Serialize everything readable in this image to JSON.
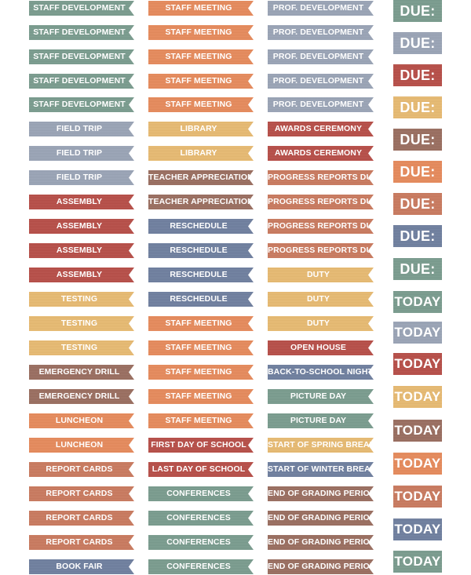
{
  "colors": {
    "sage": "#7a9c8e",
    "orange": "#e68a5c",
    "gray_blue": "#9aa4b6",
    "blue": "#6f7f9f",
    "gold": "#e7ba72",
    "brown": "#9a6e60",
    "red": "#b74e48",
    "rust": "#c97a5f",
    "slate": "#8a9dab"
  },
  "stickers": {
    "column1": [
      {
        "label": "STAFF DEVELOPMENT",
        "color": "sage"
      },
      {
        "label": "STAFF DEVELOPMENT",
        "color": "sage"
      },
      {
        "label": "STAFF DEVELOPMENT",
        "color": "sage"
      },
      {
        "label": "STAFF DEVELOPMENT",
        "color": "sage"
      },
      {
        "label": "STAFF DEVELOPMENT",
        "color": "sage"
      },
      {
        "label": "FIELD TRIP",
        "color": "gray_blue"
      },
      {
        "label": "FIELD TRIP",
        "color": "gray_blue"
      },
      {
        "label": "FIELD TRIP",
        "color": "gray_blue"
      },
      {
        "label": "ASSEMBLY",
        "color": "red"
      },
      {
        "label": "ASSEMBLY",
        "color": "red"
      },
      {
        "label": "ASSEMBLY",
        "color": "red"
      },
      {
        "label": "ASSEMBLY",
        "color": "red"
      },
      {
        "label": "TESTING",
        "color": "gold"
      },
      {
        "label": "TESTING",
        "color": "gold"
      },
      {
        "label": "TESTING",
        "color": "gold"
      },
      {
        "label": "EMERGENCY DRILL",
        "color": "brown"
      },
      {
        "label": "EMERGENCY DRILL",
        "color": "brown"
      },
      {
        "label": "LUNCHEON",
        "color": "orange"
      },
      {
        "label": "LUNCHEON",
        "color": "orange"
      },
      {
        "label": "REPORT CARDS",
        "color": "rust"
      },
      {
        "label": "REPORT CARDS",
        "color": "rust"
      },
      {
        "label": "REPORT CARDS",
        "color": "rust"
      },
      {
        "label": "REPORT CARDS",
        "color": "rust"
      },
      {
        "label": "BOOK FAIR",
        "color": "blue"
      }
    ],
    "column2": [
      {
        "label": "STAFF MEETING",
        "color": "orange"
      },
      {
        "label": "STAFF MEETING",
        "color": "orange"
      },
      {
        "label": "STAFF MEETING",
        "color": "orange"
      },
      {
        "label": "STAFF MEETING",
        "color": "orange"
      },
      {
        "label": "STAFF MEETING",
        "color": "orange"
      },
      {
        "label": "LIBRARY",
        "color": "gold"
      },
      {
        "label": "LIBRARY",
        "color": "gold"
      },
      {
        "label": "TEACHER APPRECIATION",
        "color": "brown"
      },
      {
        "label": "TEACHER APPRECIATION",
        "color": "brown"
      },
      {
        "label": "RESCHEDULE",
        "color": "blue"
      },
      {
        "label": "RESCHEDULE",
        "color": "blue"
      },
      {
        "label": "RESCHEDULE",
        "color": "blue"
      },
      {
        "label": "RESCHEDULE",
        "color": "blue"
      },
      {
        "label": "STAFF MEETING",
        "color": "orange"
      },
      {
        "label": "STAFF MEETING",
        "color": "orange"
      },
      {
        "label": "STAFF MEETING",
        "color": "orange"
      },
      {
        "label": "STAFF MEETING",
        "color": "orange"
      },
      {
        "label": "STAFF MEETING",
        "color": "orange"
      },
      {
        "label": "FIRST DAY OF SCHOOL",
        "color": "red"
      },
      {
        "label": "LAST DAY OF SCHOOL",
        "color": "red"
      },
      {
        "label": "CONFERENCES",
        "color": "sage"
      },
      {
        "label": "CONFERENCES",
        "color": "sage"
      },
      {
        "label": "CONFERENCES",
        "color": "sage"
      },
      {
        "label": "CONFERENCES",
        "color": "sage"
      }
    ],
    "column3": [
      {
        "label": "PROF. DEVELOPMENT",
        "color": "gray_blue"
      },
      {
        "label": "PROF. DEVELOPMENT",
        "color": "gray_blue"
      },
      {
        "label": "PROF. DEVELOPMENT",
        "color": "gray_blue"
      },
      {
        "label": "PROF. DEVELOPMENT",
        "color": "gray_blue"
      },
      {
        "label": "PROF. DEVELOPMENT",
        "color": "gray_blue"
      },
      {
        "label": "AWARDS CEREMONY",
        "color": "red"
      },
      {
        "label": "AWARDS CEREMONY",
        "color": "red"
      },
      {
        "label": "PROGRESS REPORTS DUE",
        "color": "rust"
      },
      {
        "label": "PROGRESS REPORTS DUE",
        "color": "rust"
      },
      {
        "label": "PROGRESS REPORTS DUE",
        "color": "rust"
      },
      {
        "label": "PROGRESS REPORTS DUE",
        "color": "rust"
      },
      {
        "label": "DUTY",
        "color": "gold"
      },
      {
        "label": "DUTY",
        "color": "gold"
      },
      {
        "label": "DUTY",
        "color": "gold"
      },
      {
        "label": "OPEN HOUSE",
        "color": "red"
      },
      {
        "label": "BACK-TO-SCHOOL NIGHT",
        "color": "blue"
      },
      {
        "label": "PICTURE DAY",
        "color": "sage"
      },
      {
        "label": "PICTURE DAY",
        "color": "sage"
      },
      {
        "label": "START OF SPRING BREAK",
        "color": "gold"
      },
      {
        "label": "START OF WINTER BREAK",
        "color": "blue"
      },
      {
        "label": "END OF GRADING PERIOD",
        "color": "brown"
      },
      {
        "label": "END OF GRADING PERIOD",
        "color": "brown"
      },
      {
        "label": "END OF GRADING PERIOD",
        "color": "brown"
      },
      {
        "label": "END OF GRADING PERIOD",
        "color": "brown"
      }
    ],
    "column4": [
      {
        "label": "DUE:",
        "color": "sage"
      },
      {
        "label": "DUE:",
        "color": "gray_blue"
      },
      {
        "label": "DUE:",
        "color": "red"
      },
      {
        "label": "DUE:",
        "color": "gold"
      },
      {
        "label": "DUE:",
        "color": "brown"
      },
      {
        "label": "DUE:",
        "color": "orange"
      },
      {
        "label": "DUE:",
        "color": "rust"
      },
      {
        "label": "DUE:",
        "color": "blue"
      },
      {
        "label": "DUE:",
        "color": "sage"
      },
      {
        "label": "TODAY",
        "color": "sage"
      },
      {
        "label": "TODAY",
        "color": "gray_blue"
      },
      {
        "label": "TODAY",
        "color": "red"
      },
      {
        "label": "TODAY",
        "color": "gold"
      },
      {
        "label": "TODAY",
        "color": "brown"
      },
      {
        "label": "TODAY",
        "color": "orange"
      },
      {
        "label": "TODAY",
        "color": "rust"
      },
      {
        "label": "TODAY",
        "color": "blue"
      },
      {
        "label": "TODAY",
        "color": "sage"
      }
    ]
  }
}
